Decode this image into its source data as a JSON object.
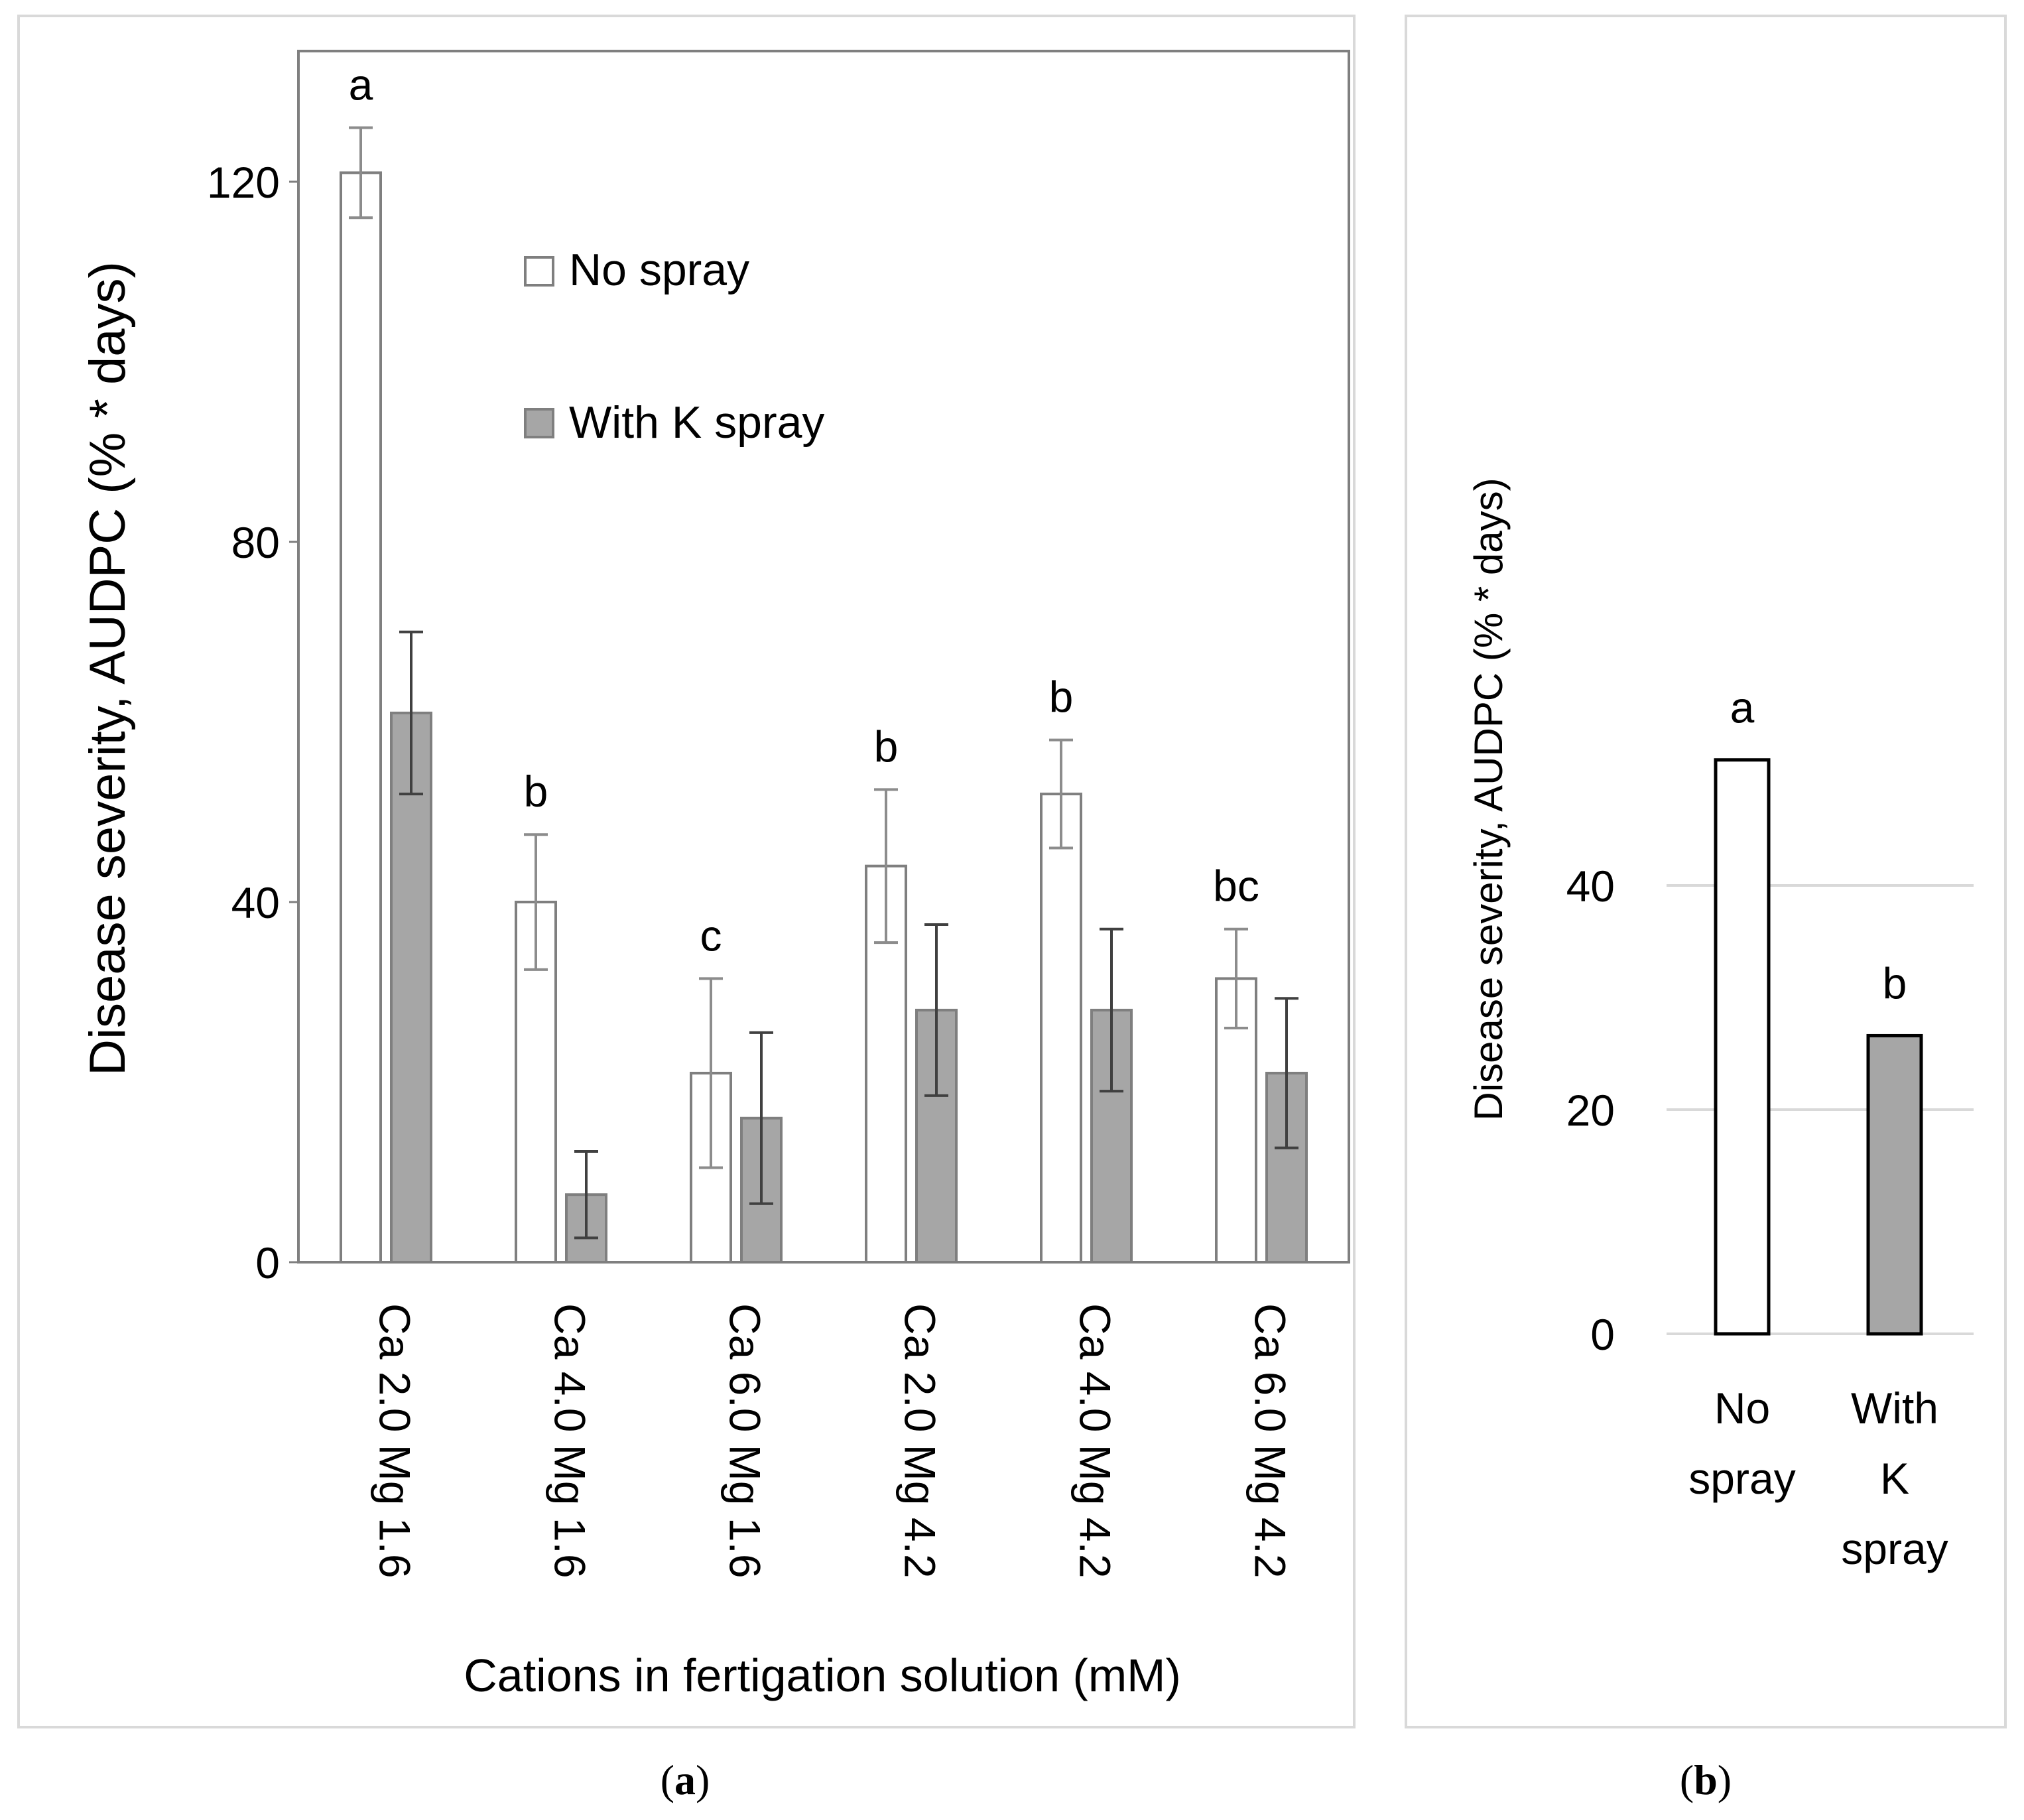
{
  "chart_data": [
    {
      "panel_label": "a",
      "type": "bar",
      "ylabel": "Disease severity, AUDPC (% * days)",
      "xlabel": "Cations in fertigation solution (mM)",
      "ylim": [
        0,
        135
      ],
      "yticks": [
        0,
        40,
        80,
        120
      ],
      "grid": false,
      "legend_position": "top-center",
      "categories": [
        "Ca 2.0 Mg 1.6",
        "Ca 4.0 Mg 1.6",
        "Ca 6.0 Mg 1.6",
        "Ca 2.0 Mg 4.2",
        "Ca 4.0 Mg 4.2",
        "Ca 6.0 Mg 4.2"
      ],
      "letters": [
        "a",
        "b",
        "c",
        "b",
        "b",
        "bc"
      ],
      "series": [
        {
          "name": "No spray",
          "color": "#ffffff",
          "stroke": "#7f7f7f",
          "values": [
            121,
            40,
            21,
            44,
            52,
            31.5
          ],
          "errors": [
            5,
            7.5,
            10.5,
            8.5,
            6,
            5.5
          ]
        },
        {
          "name": "With K spray",
          "color": "#a6a6a6",
          "stroke": "#7f7f7f",
          "values": [
            61,
            7.5,
            16,
            28,
            28,
            21
          ],
          "errors": [
            9,
            4.8,
            9.5,
            9.5,
            9,
            8.3
          ]
        }
      ]
    },
    {
      "panel_label": "b",
      "type": "bar",
      "ylabel": "Disease severity, AUDPC (% * days)",
      "xlabel": "",
      "ylim": [
        0,
        50
      ],
      "yticks": [
        0,
        20,
        40
      ],
      "grid": true,
      "categories": [
        "No spray",
        "With K spray"
      ],
      "category_lines": [
        [
          "No",
          "spray"
        ],
        [
          "With",
          "K",
          "spray"
        ]
      ],
      "values": [
        51.2,
        26.6
      ],
      "colors": [
        "#ffffff",
        "#a6a6a6"
      ],
      "letters": [
        "a",
        "b"
      ]
    }
  ]
}
